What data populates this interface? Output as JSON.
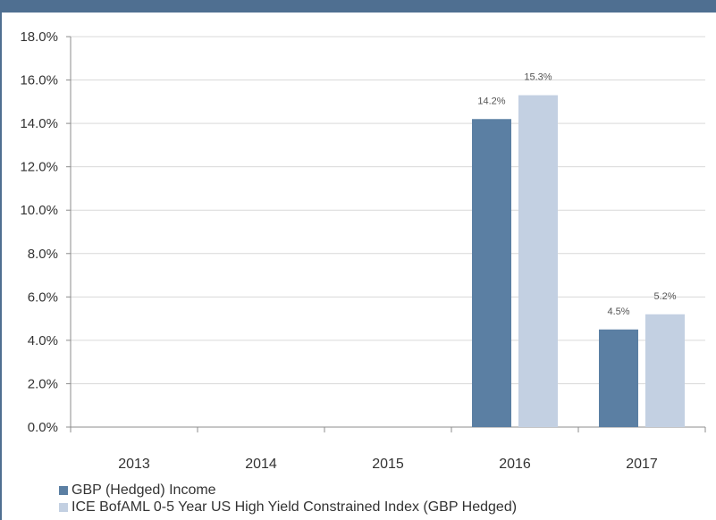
{
  "chart_data": {
    "type": "bar",
    "categories": [
      "2013",
      "2014",
      "2015",
      "2016",
      "2017"
    ],
    "series": [
      {
        "name": "GBP (Hedged) Income",
        "color": "#5b7fa3",
        "values": [
          null,
          null,
          null,
          14.2,
          4.5
        ],
        "labels": [
          "",
          "",
          "",
          "14.2%",
          "4.5%"
        ]
      },
      {
        "name": "ICE BofAML 0-5 Year US High Yield Constrained Index (GBP Hedged)",
        "color": "#c3d0e2",
        "values": [
          null,
          null,
          null,
          15.3,
          5.2
        ],
        "labels": [
          "",
          "",
          "",
          "15.3%",
          "5.2%"
        ]
      }
    ],
    "ylim": [
      0,
      18
    ],
    "yticks": [
      "0.0%",
      "2.0%",
      "4.0%",
      "6.0%",
      "8.0%",
      "10.0%",
      "12.0%",
      "14.0%",
      "16.0%",
      "18.0%"
    ],
    "grid": true,
    "legend_position": "bottom-left",
    "frame_color": "#4f6f91"
  }
}
